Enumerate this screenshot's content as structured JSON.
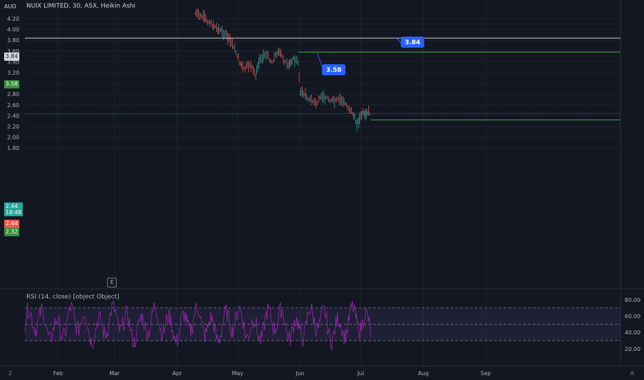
{
  "header": {
    "currency": "AUD",
    "title": "NUIX LIMITED, 30, ASX, Heikin Ashi"
  },
  "rsi": {
    "title": "RSI (14, close) [object Object]",
    "upper": 70,
    "middle": 50,
    "lower": 30,
    "ticks": [
      "80.00",
      "60.00",
      "40.00",
      "20.00"
    ]
  },
  "chart_data": {
    "type": "candlestick",
    "y_ticks": [
      "4.20",
      "4.00",
      "3.80",
      "3.60",
      "3.40",
      "3.20",
      "3.00",
      "2.80",
      "2.60",
      "2.40",
      "2.20",
      "2.00",
      "1.80"
    ],
    "x_ticks": [
      "Feb",
      "Mar",
      "Apr",
      "May",
      "Jun",
      "Jul",
      "Aug",
      "Sep"
    ],
    "ylim": [
      1.7,
      4.3
    ],
    "price_path": [
      {
        "date": "2021-04-10",
        "price": 4.3
      },
      {
        "date": "2021-04-14",
        "price": 4.22
      },
      {
        "date": "2021-04-20",
        "price": 4.05
      },
      {
        "date": "2021-04-25",
        "price": 3.9
      },
      {
        "date": "2021-04-29",
        "price": 3.7
      },
      {
        "date": "2021-05-02",
        "price": 3.4
      },
      {
        "date": "2021-05-04",
        "price": 3.25
      },
      {
        "date": "2021-05-07",
        "price": 3.35
      },
      {
        "date": "2021-05-10",
        "price": 3.15
      },
      {
        "date": "2021-05-12",
        "price": 3.45
      },
      {
        "date": "2021-05-15",
        "price": 3.55
      },
      {
        "date": "2021-05-18",
        "price": 3.4
      },
      {
        "date": "2021-05-21",
        "price": 3.6
      },
      {
        "date": "2021-05-23",
        "price": 3.5
      },
      {
        "date": "2021-05-26",
        "price": 3.3
      },
      {
        "date": "2021-05-28",
        "price": 3.45
      },
      {
        "date": "2021-05-31",
        "price": 3.4
      },
      {
        "date": "2021-06-01",
        "price": 2.85
      },
      {
        "date": "2021-06-03",
        "price": 2.8
      },
      {
        "date": "2021-06-06",
        "price": 2.7
      },
      {
        "date": "2021-06-09",
        "price": 2.62
      },
      {
        "date": "2021-06-12",
        "price": 2.75
      },
      {
        "date": "2021-06-15",
        "price": 2.72
      },
      {
        "date": "2021-06-18",
        "price": 2.65
      },
      {
        "date": "2021-06-21",
        "price": 2.7
      },
      {
        "date": "2021-06-24",
        "price": 2.6
      },
      {
        "date": "2021-06-27",
        "price": 2.45
      },
      {
        "date": "2021-06-29",
        "price": 2.25
      },
      {
        "date": "2021-06-30",
        "price": 2.3
      },
      {
        "date": "2021-07-02",
        "price": 2.45
      },
      {
        "date": "2021-07-03",
        "price": 2.38
      },
      {
        "date": "2021-07-05",
        "price": 2.47
      },
      {
        "date": "2021-07-06",
        "price": 2.44
      }
    ],
    "levels": [
      {
        "value": 3.84,
        "label": "3.84"
      },
      {
        "value": 3.58,
        "label": "3.58"
      },
      {
        "value": 2.32,
        "label": "2.32"
      }
    ],
    "last_price": "2.44",
    "countdown": "18:48",
    "bid_label": "2.44",
    "bottom_corners": [
      "Z",
      "A"
    ]
  },
  "colors": {
    "background": "#131722",
    "grid": "#1e222d",
    "up": "#26a69a",
    "down": "#ef5350",
    "level_green": "#4caf50",
    "level_white": "#d1d4dc",
    "callout_blue": "#2962ff",
    "rsi_line": "#9c27b0",
    "rsi_band": "#7e57c2"
  }
}
